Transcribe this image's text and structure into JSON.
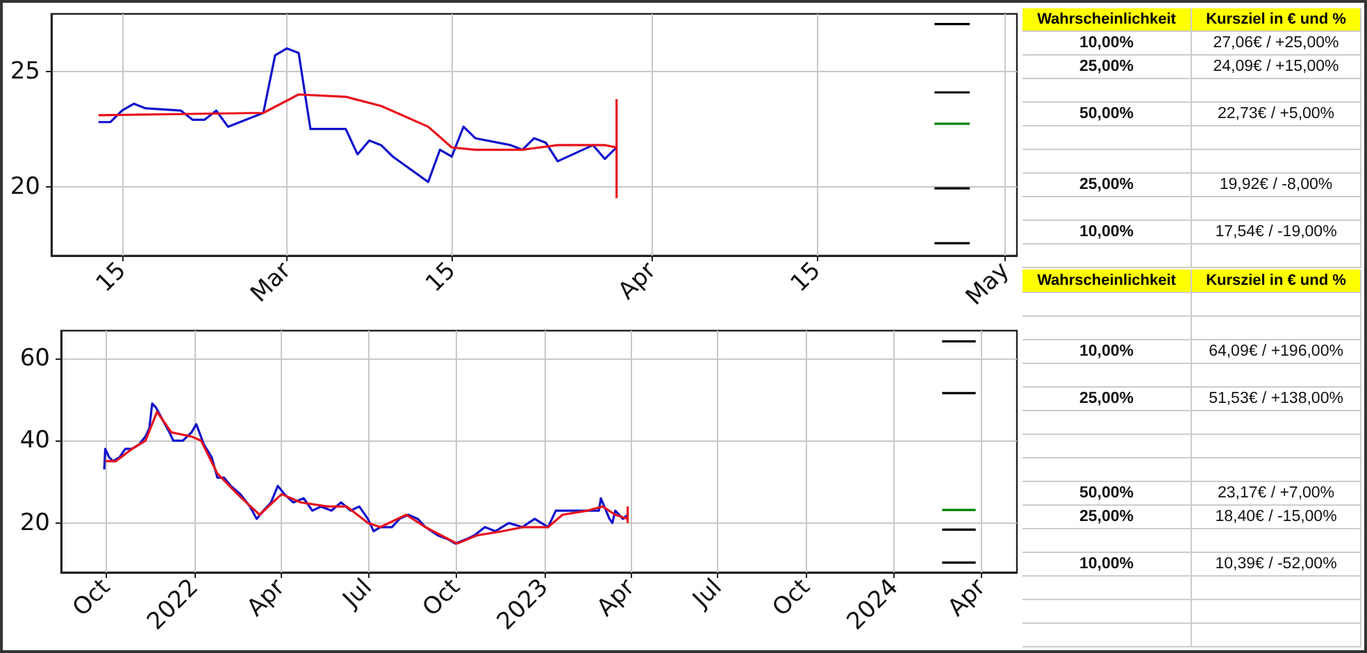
{
  "chart_data": [
    {
      "type": "line",
      "xlim": [
        "2023-02-09",
        "2023-05-02"
      ],
      "ylim": [
        17,
        27.5
      ],
      "xticks": [
        {
          "value": "2023-02-15",
          "label": "15"
        },
        {
          "value": "2023-03-01",
          "label": "Mar"
        },
        {
          "value": "2023-03-15",
          "label": "15"
        },
        {
          "value": "2023-04-01",
          "label": "Apr"
        },
        {
          "value": "2023-04-15",
          "label": "15"
        },
        {
          "value": "2023-05-01",
          "label": "May"
        }
      ],
      "yticks": [
        20,
        25
      ],
      "grid": true,
      "series": [
        {
          "color": "#1010cc",
          "x": [
            "2023-02-13",
            "2023-02-14",
            "2023-02-15",
            "2023-02-16",
            "2023-02-17",
            "2023-02-20",
            "2023-02-21",
            "2023-02-22",
            "2023-02-23",
            "2023-02-24",
            "2023-02-27",
            "2023-02-28",
            "2023-03-01",
            "2023-03-02",
            "2023-03-03",
            "2023-03-06",
            "2023-03-07",
            "2023-03-08",
            "2023-03-09",
            "2023-03-10",
            "2023-03-13",
            "2023-03-14",
            "2023-03-15",
            "2023-03-16",
            "2023-03-17",
            "2023-03-20",
            "2023-03-21",
            "2023-03-22",
            "2023-03-23",
            "2023-03-24",
            "2023-03-27",
            "2023-03-28",
            "2023-03-29"
          ],
          "values": [
            22.8,
            22.8,
            23.3,
            23.6,
            23.4,
            23.3,
            22.9,
            22.9,
            23.3,
            22.6,
            23.2,
            25.7,
            26.0,
            25.8,
            22.5,
            22.5,
            21.4,
            22.0,
            21.8,
            21.3,
            20.2,
            21.6,
            21.3,
            22.6,
            22.1,
            21.8,
            21.6,
            22.1,
            21.9,
            21.1,
            21.8,
            21.2,
            21.7
          ]
        },
        {
          "color": "#e8101a",
          "x": [
            "2023-02-13",
            "2023-02-27",
            "2023-03-02",
            "2023-03-06",
            "2023-03-09",
            "2023-03-13",
            "2023-03-15",
            "2023-03-17",
            "2023-03-21",
            "2023-03-24",
            "2023-03-28",
            "2023-03-29"
          ],
          "values": [
            23.1,
            23.2,
            24.0,
            23.9,
            23.5,
            22.6,
            21.7,
            21.6,
            21.6,
            21.8,
            21.8,
            21.7
          ]
        },
        {
          "color": "#e8101a",
          "x": [
            "2023-03-29",
            "2023-03-29"
          ],
          "values": [
            23.8,
            19.5
          ]
        },
        {
          "color": "#000000",
          "x": [
            "2023-04-25",
            "2023-04-28"
          ],
          "values": [
            27.06,
            27.06
          ]
        },
        {
          "color": "#000000",
          "x": [
            "2023-04-25",
            "2023-04-28"
          ],
          "values": [
            24.09,
            24.09
          ]
        },
        {
          "color": "#008000",
          "x": [
            "2023-04-25",
            "2023-04-28"
          ],
          "values": [
            22.73,
            22.73
          ]
        },
        {
          "color": "#000000",
          "x": [
            "2023-04-25",
            "2023-04-28"
          ],
          "values": [
            19.92,
            19.92
          ]
        },
        {
          "color": "#000000",
          "x": [
            "2023-04-25",
            "2023-04-28"
          ],
          "values": [
            17.54,
            17.54
          ]
        }
      ]
    },
    {
      "type": "other",
      "color": "#ffff00",
      "categories": [
        "Wahrscheinlichkeit",
        "Kursziel in € und %"
      ],
      "cell_labels": [
        [
          "10,00%",
          "27,06€ / +25,00%"
        ],
        [
          "25,00%",
          "24,09€ / +15,00%"
        ],
        null,
        [
          "50,00%",
          "22,73€ / +5,00%"
        ],
        null,
        null,
        [
          "25,00%",
          "19,92€ / -8,00%"
        ],
        null,
        [
          "10,00%",
          "17,54€ / -19,00%"
        ],
        null
      ]
    },
    {
      "type": "line",
      "xlim": [
        "2021-08-15",
        "2024-05-08"
      ],
      "ylim": [
        8,
        66.7
      ],
      "xticks": [
        {
          "value": "2021-10-01",
          "label": "Oct"
        },
        {
          "value": "2022-01-01",
          "label": "2022"
        },
        {
          "value": "2022-04-01",
          "label": "Apr"
        },
        {
          "value": "2022-07-01",
          "label": "Jul"
        },
        {
          "value": "2022-10-01",
          "label": "Oct"
        },
        {
          "value": "2023-01-01",
          "label": "2023"
        },
        {
          "value": "2023-04-01",
          "label": "Apr"
        },
        {
          "value": "2023-07-01",
          "label": "Jul"
        },
        {
          "value": "2023-10-01",
          "label": "Oct"
        },
        {
          "value": "2024-01-01",
          "label": "2024"
        },
        {
          "value": "2024-04-01",
          "label": "Apr"
        }
      ],
      "yticks": [
        20,
        40,
        60
      ],
      "grid": true,
      "series": [
        {
          "color": "#1010cc",
          "x": [
            "2021-09-29",
            "2021-09-30",
            "2021-10-04",
            "2021-10-08",
            "2021-10-15",
            "2021-10-21",
            "2021-10-28",
            "2021-11-04",
            "2021-11-11",
            "2021-11-15",
            "2021-11-18",
            "2021-11-22",
            "2021-11-29",
            "2021-12-06",
            "2021-12-10",
            "2021-12-20",
            "2021-12-29",
            "2022-01-03",
            "2022-01-11",
            "2022-01-19",
            "2022-01-25",
            "2022-02-01",
            "2022-02-08",
            "2022-02-18",
            "2022-02-28",
            "2022-03-07",
            "2022-03-14",
            "2022-03-22",
            "2022-03-29",
            "2022-04-05",
            "2022-04-14",
            "2022-04-25",
            "2022-05-04",
            "2022-05-13",
            "2022-05-24",
            "2022-06-03",
            "2022-06-13",
            "2022-06-22",
            "2022-07-01",
            "2022-07-07",
            "2022-07-14",
            "2022-07-26",
            "2022-08-03",
            "2022-08-12",
            "2022-08-22",
            "2022-08-30",
            "2022-09-12",
            "2022-09-23",
            "2022-09-30",
            "2022-10-11",
            "2022-10-20",
            "2022-10-31",
            "2022-11-11",
            "2022-11-25",
            "2022-12-09",
            "2022-12-22",
            "2023-01-05",
            "2023-01-13",
            "2023-01-23",
            "2023-02-02",
            "2023-02-15",
            "2023-02-27",
            "2023-03-01",
            "2023-03-10",
            "2023-03-13",
            "2023-03-16",
            "2023-03-24",
            "2023-03-29"
          ],
          "values": [
            33,
            38,
            36,
            35,
            36,
            38,
            38,
            39,
            41,
            43,
            49,
            48,
            45,
            42,
            40,
            40,
            42,
            44,
            39,
            36,
            31,
            31,
            29,
            27,
            24,
            21,
            23,
            25,
            29,
            27,
            25,
            26,
            23,
            24,
            23,
            25,
            23,
            24,
            21,
            18,
            19,
            19,
            21,
            22,
            21,
            19,
            17,
            16,
            15,
            16,
            17,
            19,
            18,
            20,
            19,
            21,
            19,
            23,
            23,
            23,
            23,
            23,
            26,
            21,
            20,
            23,
            21,
            22
          ]
        },
        {
          "color": "#e8101a",
          "x": [
            "2021-09-30",
            "2021-10-11",
            "2021-10-28",
            "2021-11-11",
            "2021-11-23",
            "2021-12-08",
            "2021-12-29",
            "2022-01-08",
            "2022-01-25",
            "2022-02-15",
            "2022-03-10",
            "2022-04-02",
            "2022-04-22",
            "2022-05-20",
            "2022-06-09",
            "2022-07-01",
            "2022-07-14",
            "2022-08-10",
            "2022-08-30",
            "2022-10-02",
            "2022-10-23",
            "2022-11-18",
            "2022-12-10",
            "2023-01-05",
            "2023-01-20",
            "2023-02-15",
            "2023-03-03",
            "2023-03-16",
            "2023-03-29"
          ],
          "values": [
            35,
            35,
            38,
            40,
            47,
            42,
            41,
            40,
            32,
            27,
            22,
            27,
            25,
            24,
            24,
            20,
            19,
            22,
            19,
            15,
            17,
            18,
            19,
            19,
            22,
            23,
            24,
            22,
            21
          ]
        },
        {
          "color": "#e8101a",
          "x": [
            "2023-03-29",
            "2023-03-29"
          ],
          "values": [
            24,
            20
          ]
        },
        {
          "color": "#000000",
          "x": [
            "2024-02-20",
            "2024-03-26"
          ],
          "values": [
            64.09,
            64.09
          ]
        },
        {
          "color": "#000000",
          "x": [
            "2024-02-20",
            "2024-03-26"
          ],
          "values": [
            51.53,
            51.53
          ]
        },
        {
          "color": "#008000",
          "x": [
            "2024-02-20",
            "2024-03-26"
          ],
          "values": [
            23.17,
            23.17
          ]
        },
        {
          "color": "#000000",
          "x": [
            "2024-02-20",
            "2024-03-26"
          ],
          "values": [
            18.4,
            18.4
          ]
        },
        {
          "color": "#000000",
          "x": [
            "2024-02-20",
            "2024-03-26"
          ],
          "values": [
            10.39,
            10.39
          ]
        }
      ]
    },
    {
      "type": "other",
      "color": "#ffff00",
      "categories": [
        "Wahrscheinlichkeit",
        "Kursziel in € und %"
      ],
      "cell_labels": [
        null,
        null,
        [
          "10,00%",
          "64,09€ / +196,00%"
        ],
        null,
        [
          "25,00%",
          "51,53€ / +138,00%"
        ],
        null,
        null,
        null,
        [
          "50,00%",
          "23,17€ / +7,00%"
        ],
        [
          "25,00%",
          "18,40€ / -15,00%"
        ],
        null,
        [
          "10,00%",
          "10,39€ / -52,00%"
        ],
        null,
        null,
        null
      ]
    }
  ]
}
